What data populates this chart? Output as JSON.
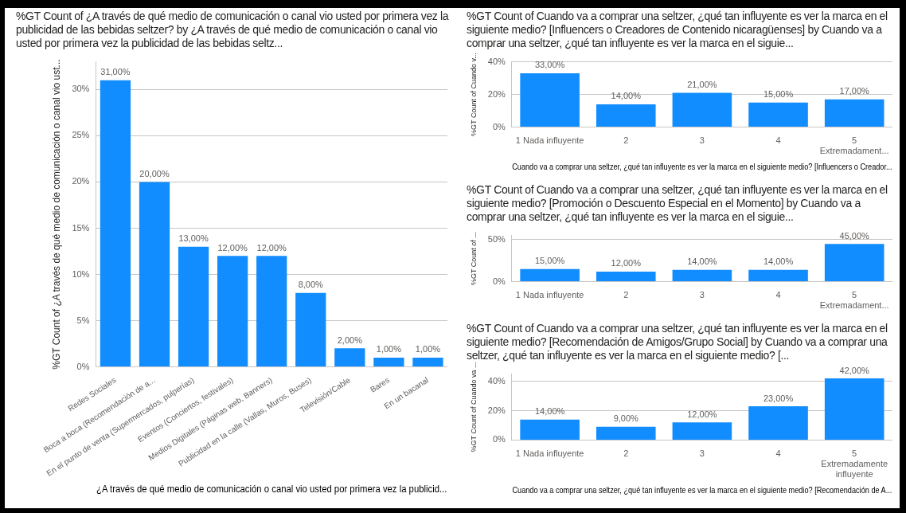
{
  "chart_data": [
    {
      "type": "bar",
      "title": "%GT Count of ¿A través de qué medio de comunicación o canal vio usted por primera vez la publicidad de las bebidas seltzer? by ¿A través de qué medio de comunicación o canal vio usted por primera vez la publicidad de las bebidas seltz...",
      "xlabel": "¿A través de qué medio de comunicación o canal vio usted por primera vez la publicid...",
      "ylabel": "%GT Count of ¿A través de qué medio de comunicación o canal vio ust...",
      "categories": [
        "Redes Sociales",
        "Boca a boca (Recomendación de a...",
        "En el punto de venta (Supermercados, pulperías)",
        "Eventos (Conciertos, festivales)",
        "Medios Digitales (Páginas web, Banners)",
        "Publicidad en la calle (Vallas, Muros, Buses)",
        "Televisión/Cable",
        "Bares",
        "En un bacanal"
      ],
      "values": [
        31,
        20,
        13,
        12,
        12,
        8,
        2,
        1,
        1
      ],
      "value_labels": [
        "31,00%",
        "20,00%",
        "13,00%",
        "12,00%",
        "12,00%",
        "8,00%",
        "2,00%",
        "1,00%",
        "1,00%"
      ],
      "color": "#118dff",
      "ylim": [
        0,
        33
      ],
      "yticks": [
        {
          "value": 0,
          "label": "0%"
        },
        {
          "value": 5,
          "label": "5%"
        },
        {
          "value": 10,
          "label": "10%"
        },
        {
          "value": 15,
          "label": "15%"
        },
        {
          "value": 20,
          "label": "20%"
        },
        {
          "value": 25,
          "label": "25%"
        },
        {
          "value": 30,
          "label": "30%"
        }
      ],
      "grid": "y"
    },
    {
      "type": "bar",
      "title": "%GT Count of Cuando va a comprar una seltzer, ¿qué tan influyente es ver la marca en el siguiente medio? [Influencers o Creadores de Contenido nicaragüenses] by Cuando va a comprar una seltzer, ¿qué tan influyente es ver la marca en el siguie...",
      "xlabel": "Cuando va a comprar una seltzer, ¿qué tan influyente es ver la marca en el siguiente medio? [Influencers o Creador...",
      "ylabel": "%GT Count of Cuando v...",
      "categories": [
        "1 Nada influyente",
        "2",
        "3",
        "4",
        "5 Extremadament..."
      ],
      "values": [
        33,
        14,
        21,
        15,
        17
      ],
      "value_labels": [
        "33,00%",
        "14,00%",
        "21,00%",
        "15,00%",
        "17,00%"
      ],
      "color": "#118dff",
      "ylim": [
        0,
        40
      ],
      "yticks": [
        {
          "value": 0,
          "label": "0%"
        },
        {
          "value": 20,
          "label": "20%"
        },
        {
          "value": 40,
          "label": "40%"
        }
      ],
      "grid": "y"
    },
    {
      "type": "bar",
      "title": "%GT Count of Cuando va a comprar una seltzer, ¿qué tan influyente es ver la marca en el siguiente medio? [Promoción o Descuento Especial en el Momento] by Cuando va a comprar una seltzer, ¿qué tan influyente es ver la marca en el siguie...",
      "ylabel": "%GT Count of ...",
      "categories": [
        "1 Nada influyente",
        "2",
        "3",
        "4",
        "5 Extremadament..."
      ],
      "values": [
        15,
        12,
        14,
        14,
        45
      ],
      "value_labels": [
        "15,00%",
        "12,00%",
        "14,00%",
        "14,00%",
        "45,00%"
      ],
      "color": "#118dff",
      "ylim": [
        0,
        55
      ],
      "yticks": [
        {
          "value": 0,
          "label": "0%"
        },
        {
          "value": 50,
          "label": "50%"
        }
      ],
      "grid": "y"
    },
    {
      "type": "bar",
      "title": "%GT Count of Cuando va a comprar una seltzer, ¿qué tan influyente es ver la marca en el siguiente medio? [Recomendación de Amigos/Grupo Social] by Cuando va a comprar una seltzer, ¿qué tan influyente es ver la marca en el siguiente medio? [...",
      "xlabel": "Cuando va a comprar una seltzer, ¿qué tan influyente es ver la marca en el siguiente medio? [Recomendación de A...",
      "ylabel": "%GT Count of Cuando va ...",
      "categories": [
        "1 Nada influyente",
        "2",
        "3",
        "4",
        "5 Extremadamente influyente"
      ],
      "values": [
        14,
        9,
        12,
        23,
        42
      ],
      "value_labels": [
        "14,00%",
        "9,00%",
        "12,00%",
        "23,00%",
        "42,00%"
      ],
      "color": "#118dff",
      "ylim": [
        0,
        45
      ],
      "yticks": [
        {
          "value": 0,
          "label": "0%"
        },
        {
          "value": 20,
          "label": "20%"
        },
        {
          "value": 40,
          "label": "40%"
        }
      ],
      "grid": "y"
    }
  ]
}
